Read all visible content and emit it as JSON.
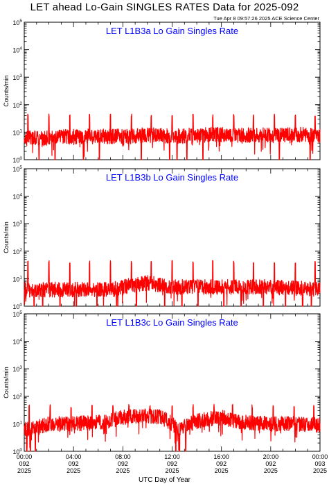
{
  "page": {
    "title": "LET ahead Lo-Gain SINGLES RATES Data for 2025-092",
    "timestamp": "Tue Apr  8 09:57:26 2025 ACE Science Center",
    "x_axis_title": "UTC Day of Year"
  },
  "colors": {
    "data": "#ff0000",
    "panel_title": "#0000ff",
    "axes": "#000000"
  },
  "chart_data": [
    {
      "type": "line",
      "title": "LET L1B3a Lo Gain Singles Rate",
      "ylabel": "Counts/min",
      "yscale": "log",
      "ylim": [
        1,
        100000
      ],
      "y_ticks": [
        1,
        10,
        100,
        1000,
        10000,
        100000
      ],
      "x_ticks": [
        {
          "time": "00:00",
          "day": "092",
          "year": "2025"
        },
        {
          "time": "04:00",
          "day": "092",
          "year": "2025"
        },
        {
          "time": "08:00",
          "day": "092",
          "year": "2025"
        },
        {
          "time": "12:00",
          "day": "092",
          "year": "2025"
        },
        {
          "time": "16:00",
          "day": "092",
          "year": "2025"
        },
        {
          "time": "20:00",
          "day": "092",
          "year": "2025"
        },
        {
          "time": "00:00",
          "day": "093",
          "year": "2025"
        }
      ],
      "xlim_hours": [
        0,
        24
      ],
      "series": [
        {
          "baseline": [
            [
              0,
              6
            ],
            [
              2,
              6
            ],
            [
              4,
              7
            ],
            [
              8,
              7
            ],
            [
              10,
              8
            ],
            [
              12,
              7
            ],
            [
              14,
              8
            ],
            [
              18,
              8
            ],
            [
              20,
              8
            ],
            [
              24,
              8
            ]
          ],
          "spikes_hours": [
            0.3,
            2,
            3.7,
            5.3,
            7,
            8.7,
            10.3,
            12,
            13.7,
            15.3,
            17,
            18.6,
            20.3,
            22,
            23.6
          ],
          "spike_value": 40,
          "dips_hours": [
            1.2,
            2.5,
            4.8,
            6.1,
            9.5,
            11.8,
            12.4,
            13.2,
            14.5,
            20.7,
            23.2
          ],
          "dip_value": 1
        }
      ]
    },
    {
      "type": "line",
      "title": "LET L1B3b Lo Gain Singles Rate",
      "ylabel": "Counts/min",
      "yscale": "log",
      "ylim": [
        1,
        100000
      ],
      "y_ticks": [
        1,
        10,
        100,
        1000,
        10000,
        100000
      ],
      "xlim_hours": [
        0,
        24
      ],
      "series": [
        {
          "baseline": [
            [
              0,
              4
            ],
            [
              4,
              4
            ],
            [
              7,
              4
            ],
            [
              8,
              5
            ],
            [
              9,
              6
            ],
            [
              10,
              7
            ],
            [
              11,
              6
            ],
            [
              12,
              5
            ],
            [
              16,
              5
            ],
            [
              20,
              5
            ],
            [
              24,
              4
            ]
          ],
          "spikes_hours": [
            0.3,
            2,
            3.7,
            5.3,
            7,
            8.7,
            10.3,
            12,
            13.7,
            15.3,
            17,
            18.6,
            20.3,
            22,
            23.6
          ],
          "spike_value": 40,
          "dips_hours": [
            0.8,
            1.5,
            2.9,
            4.1,
            5.9,
            7.5,
            9.1,
            11.4,
            12.8,
            14.1,
            16.2,
            17.6,
            19.4,
            21.2,
            22.6,
            23.3
          ],
          "dip_value": 1
        }
      ]
    },
    {
      "type": "line",
      "title": "LET L1B3c Lo Gain Singles Rate",
      "ylabel": "Counts/min",
      "yscale": "log",
      "ylim": [
        1,
        100000
      ],
      "y_ticks": [
        1,
        10,
        100,
        1000,
        10000,
        100000
      ],
      "xlim_hours": [
        0,
        24
      ],
      "series": [
        {
          "baseline": [
            [
              0,
              6
            ],
            [
              1,
              7
            ],
            [
              2,
              10
            ],
            [
              4,
              10
            ],
            [
              6,
              11
            ],
            [
              7,
              13
            ],
            [
              8,
              17
            ],
            [
              9,
              18
            ],
            [
              10,
              20
            ],
            [
              11,
              18
            ],
            [
              12,
              10
            ],
            [
              12.5,
              5
            ],
            [
              13,
              8
            ],
            [
              14,
              12
            ],
            [
              15,
              15
            ],
            [
              16,
              17
            ],
            [
              17,
              13
            ],
            [
              18,
              11
            ],
            [
              20,
              10
            ],
            [
              22,
              10
            ],
            [
              24,
              9
            ]
          ],
          "spikes_hours": [
            0.4,
            2.1,
            3.8,
            5.5,
            7.2,
            8.5,
            10.2,
            12,
            13.7,
            15.4,
            16.9,
            18.5,
            20.2,
            21.9,
            23.5
          ],
          "spike_value": 45,
          "dips_hours": [
            0.2,
            0.5,
            0.9,
            12.3,
            12.6,
            13.1
          ],
          "dip_value": 1
        }
      ]
    }
  ]
}
